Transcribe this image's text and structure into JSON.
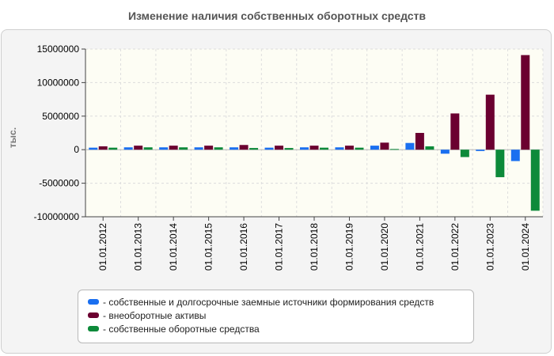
{
  "chart_data": {
    "type": "bar",
    "title": "Изменение наличия собственных оборотных средств",
    "ylabel": "тыс.",
    "categories": [
      "01.01.2012",
      "01.01.2013",
      "01.01.2014",
      "01.01.2015",
      "01.01.2016",
      "01.01.2017",
      "01.01.2018",
      "01.01.2019",
      "01.01.2020",
      "01.01.2021",
      "01.01.2022",
      "01.01.2023",
      "01.01.2024"
    ],
    "series": [
      {
        "name": "- собственные и долгосрочные заемные источники формирования средств",
        "color": "#1a6ff0",
        "values": [
          300000,
          350000,
          350000,
          350000,
          350000,
          300000,
          350000,
          350000,
          600000,
          1000000,
          -600000,
          -200000,
          -1700000
        ]
      },
      {
        "name": "- внеоборотные активы",
        "color": "#6b0030",
        "values": [
          500000,
          600000,
          600000,
          600000,
          700000,
          600000,
          600000,
          600000,
          1050000,
          2500000,
          5400000,
          8200000,
          14100000
        ]
      },
      {
        "name": "- собственные оборотные средства",
        "color": "#0d8a3a",
        "values": [
          300000,
          350000,
          350000,
          350000,
          250000,
          250000,
          300000,
          300000,
          100000,
          500000,
          -1100000,
          -4100000,
          -9100000
        ]
      }
    ],
    "ylim": [
      -10000000,
      15000000
    ],
    "yticks": [
      -10000000,
      -5000000,
      0,
      5000000,
      10000000,
      15000000
    ],
    "grid": true,
    "legend": "bottom"
  }
}
